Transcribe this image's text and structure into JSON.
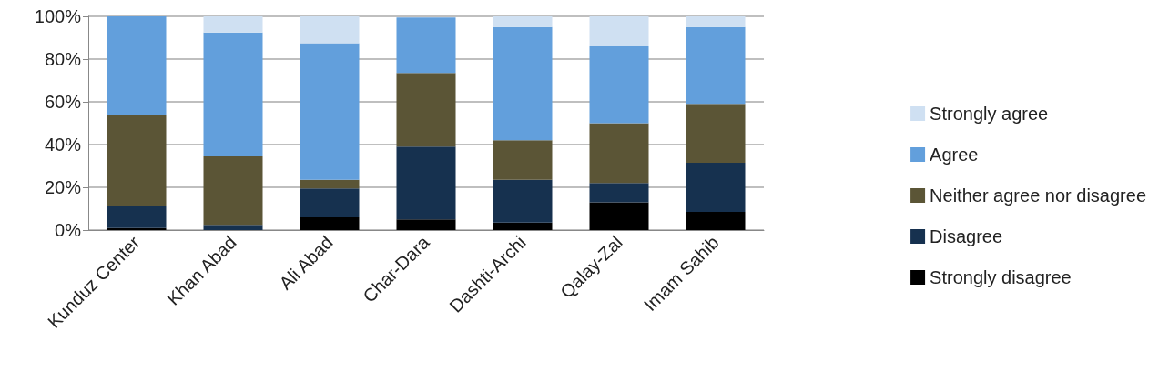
{
  "chart_data": {
    "type": "bar",
    "stacked": true,
    "categories": [
      "Kunduz Center",
      "Khan Abad",
      "Ali Abad",
      "Char-Dara",
      "Dashti-Archi",
      "Qalay-Zal",
      "Imam Sahib"
    ],
    "series": [
      {
        "name": "Strongly disagree",
        "color": "#000000",
        "values": [
          1,
          0,
          6,
          5,
          3.5,
          13,
          8.5
        ]
      },
      {
        "name": "Disagree",
        "color": "#16314f",
        "values": [
          10.5,
          2.5,
          13.5,
          34,
          20,
          9,
          23
        ]
      },
      {
        "name": "Neither agree nor disagree",
        "color": "#5b5536",
        "values": [
          42.5,
          32,
          4,
          34.5,
          18.5,
          28,
          27.5
        ]
      },
      {
        "name": "Agree",
        "color": "#629fdc",
        "values": [
          46,
          58,
          64,
          26,
          53,
          36,
          36
        ]
      },
      {
        "name": "Strongly agree",
        "color": "#cfe0f2",
        "values": [
          0,
          7.5,
          12.5,
          0,
          5,
          14,
          5
        ]
      }
    ],
    "ylim": [
      0,
      100
    ],
    "yticks": [
      {
        "value": 0,
        "label": "0%"
      },
      {
        "value": 20,
        "label": "20%"
      },
      {
        "value": 40,
        "label": "40%"
      },
      {
        "value": 60,
        "label": "60%"
      },
      {
        "value": 80,
        "label": "80%"
      },
      {
        "value": 100,
        "label": "100%"
      }
    ],
    "grid": "y",
    "legend": "right"
  }
}
